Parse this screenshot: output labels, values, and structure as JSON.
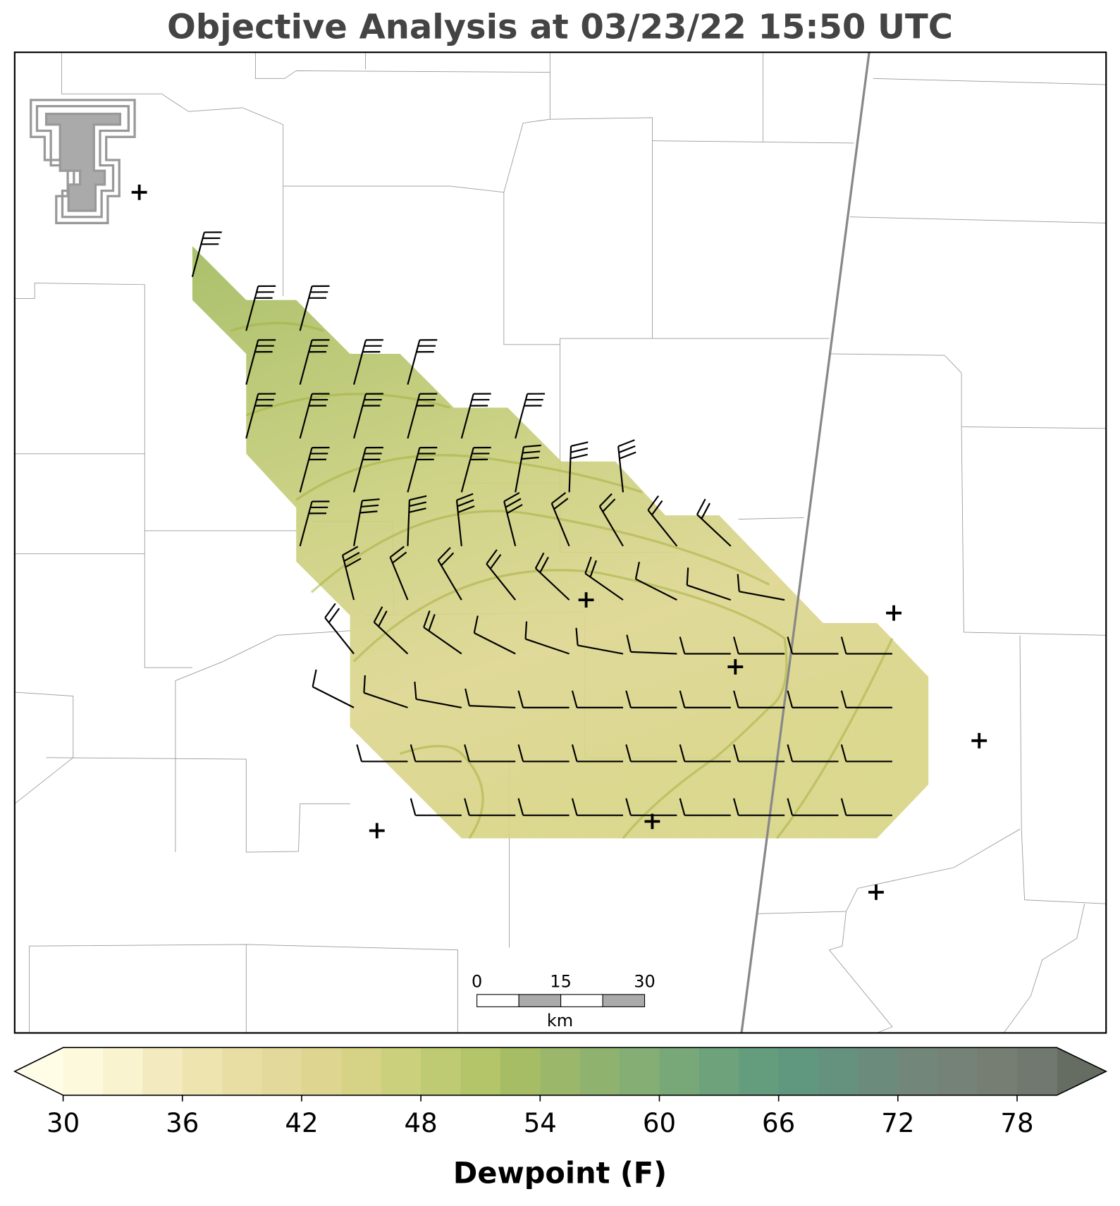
{
  "title": "Objective Analysis at 03/23/22 15:50 UTC",
  "scale_bar": {
    "ticks": [
      0,
      15,
      30
    ],
    "max": 30,
    "unit": "km"
  },
  "colorbar": {
    "label": "Dewpoint (F)",
    "lim": [
      30,
      80
    ],
    "step": 2,
    "ticks": [
      30,
      36,
      42,
      48,
      54,
      60,
      66,
      72,
      78
    ],
    "colors": [
      "#fdf9dd",
      "#f9f3cf",
      "#f3ebbf",
      "#ede4b0",
      "#e8dea4",
      "#e3d99a",
      "#ddd590",
      "#d6d386",
      "#cad07c",
      "#bfcb72",
      "#b3c469",
      "#a6bd65",
      "#9bb86a",
      "#8fb26f",
      "#84ae74",
      "#78a878",
      "#6da27b",
      "#649d7d",
      "#5f977f",
      "#64927f",
      "#6b8c7c",
      "#72877a",
      "#758277",
      "#767e74",
      "#707870"
    ],
    "under_color": "#fffde6",
    "over_color": "#656d62"
  }
}
